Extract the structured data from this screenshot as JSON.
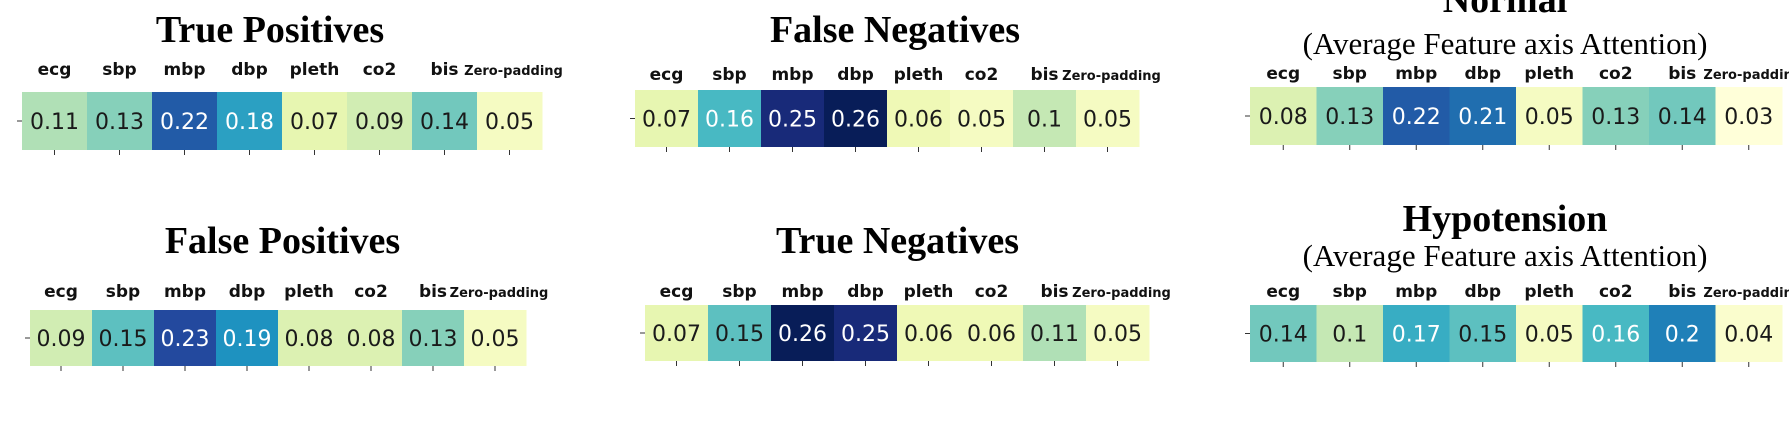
{
  "chart_data": [
    {
      "type": "heatmap",
      "title": "True Positives",
      "subtitle": "",
      "categories": [
        "ecg",
        "sbp",
        "mbp",
        "dbp",
        "pleth",
        "co2",
        "bis",
        "Zero-padding"
      ],
      "values": [
        0.11,
        0.13,
        0.22,
        0.18,
        0.07,
        0.09,
        0.14,
        0.05
      ]
    },
    {
      "type": "heatmap",
      "title": "False Negatives",
      "subtitle": "",
      "categories": [
        "ecg",
        "sbp",
        "mbp",
        "dbp",
        "pleth",
        "co2",
        "bis",
        "Zero-padding"
      ],
      "values": [
        0.07,
        0.16,
        0.25,
        0.26,
        0.06,
        0.05,
        0.1,
        0.05
      ]
    },
    {
      "type": "heatmap",
      "title": "Normal",
      "subtitle": "(Average Feature axis Attention)",
      "categories": [
        "ecg",
        "sbp",
        "mbp",
        "dbp",
        "pleth",
        "co2",
        "bis",
        "Zero-padding"
      ],
      "values": [
        0.08,
        0.13,
        0.22,
        0.21,
        0.05,
        0.13,
        0.14,
        0.03
      ]
    },
    {
      "type": "heatmap",
      "title": "False Positives",
      "subtitle": "",
      "categories": [
        "ecg",
        "sbp",
        "mbp",
        "dbp",
        "pleth",
        "co2",
        "bis",
        "Zero-padding"
      ],
      "values": [
        0.09,
        0.15,
        0.23,
        0.19,
        0.08,
        0.08,
        0.13,
        0.05
      ]
    },
    {
      "type": "heatmap",
      "title": "True Negatives",
      "subtitle": "",
      "categories": [
        "ecg",
        "sbp",
        "mbp",
        "dbp",
        "pleth",
        "co2",
        "bis",
        "Zero-padding"
      ],
      "values": [
        0.07,
        0.15,
        0.26,
        0.25,
        0.06,
        0.06,
        0.11,
        0.05
      ]
    },
    {
      "type": "heatmap",
      "title": "Hypotension",
      "subtitle": "(Average Feature axis Attention)",
      "categories": [
        "ecg",
        "sbp",
        "mbp",
        "dbp",
        "pleth",
        "co2",
        "bis",
        "Zero-padding"
      ],
      "values": [
        0.14,
        0.1,
        0.17,
        0.15,
        0.05,
        0.16,
        0.2,
        0.04
      ]
    }
  ]
}
